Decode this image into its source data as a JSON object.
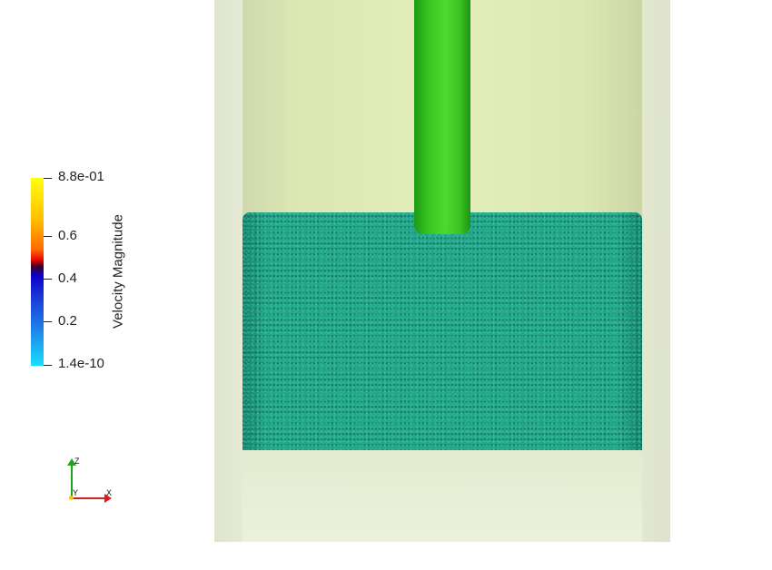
{
  "legend": {
    "title": "Velocity Magnitude",
    "labels": [
      "8.8e-01",
      "0.6",
      "0.4",
      "0.2",
      "1.4e-10"
    ]
  },
  "axes": {
    "z_label": "Z",
    "y_label": "Y",
    "x_label": "X"
  },
  "colors": {
    "shaft": "#36c51f",
    "particle_bed": "#27a58a",
    "vessel": "#e3eebb"
  }
}
